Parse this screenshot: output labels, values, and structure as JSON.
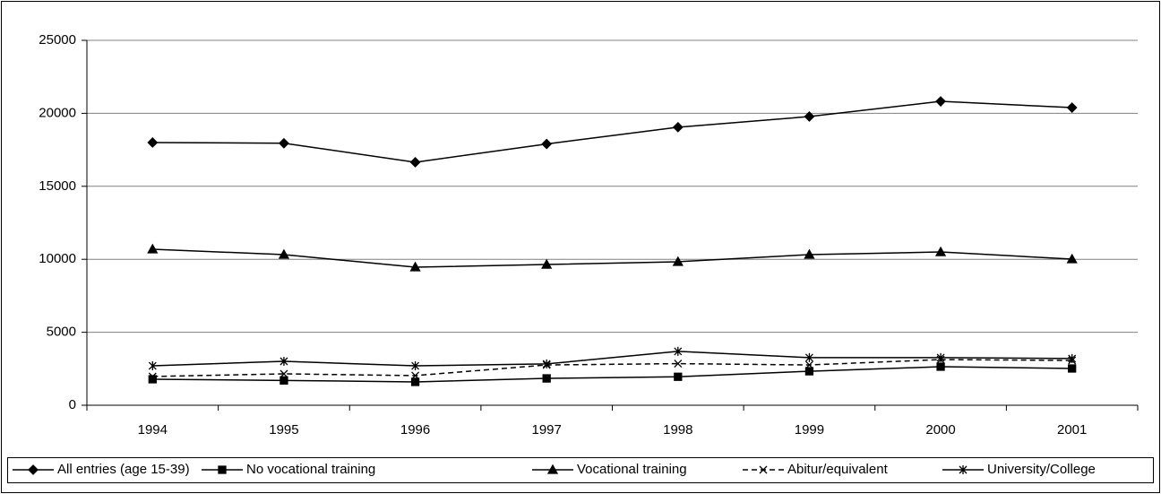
{
  "chart_data": {
    "type": "line",
    "categories": [
      "1994",
      "1995",
      "1996",
      "1997",
      "1998",
      "1999",
      "2000",
      "2001"
    ],
    "series": [
      {
        "name": "All entries (age 15-39)",
        "color": "#000000",
        "marker": "diamond",
        "dash": false,
        "values": [
          18000,
          17950,
          16650,
          17900,
          19050,
          19780,
          20820,
          20390
        ]
      },
      {
        "name": "No vocational training",
        "color": "#000000",
        "marker": "square",
        "dash": false,
        "values": [
          1780,
          1700,
          1600,
          1840,
          1950,
          2330,
          2640,
          2520
        ]
      },
      {
        "name": "Vocational training",
        "color": "#000000",
        "marker": "triangle",
        "dash": false,
        "values": [
          10690,
          10320,
          9460,
          9640,
          9830,
          10320,
          10500,
          10010
        ]
      },
      {
        "name": "Abitur/equivalent",
        "color": "#000000",
        "marker": "x",
        "dash": true,
        "values": [
          1970,
          2150,
          2030,
          2760,
          2850,
          2760,
          3130,
          3070
        ]
      },
      {
        "name": "University/College",
        "color": "#000000",
        "marker": "asterisk",
        "dash": false,
        "values": [
          2700,
          3010,
          2700,
          2830,
          3690,
          3260,
          3260,
          3200
        ]
      }
    ],
    "ylim": [
      0,
      25000
    ],
    "yticks": [
      0,
      5000,
      10000,
      15000,
      20000,
      25000
    ],
    "grid": true,
    "legend": "bottom"
  }
}
